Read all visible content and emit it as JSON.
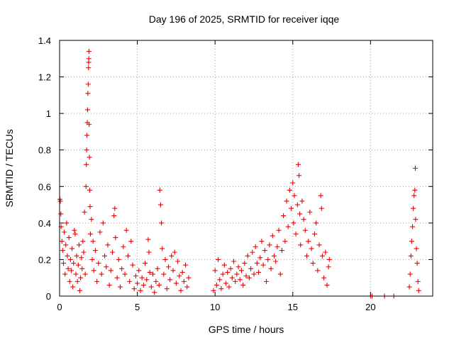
{
  "chart_data": {
    "type": "scatter",
    "title": "Day 196 of 2025, SRMTID for receiver iqqe",
    "xlabel": "GPS time / hours",
    "ylabel": "SRMTID / TECUs",
    "xlim": [
      0,
      24
    ],
    "ylim": [
      0,
      1.4
    ],
    "xticks": [
      0,
      5,
      10,
      15,
      20
    ],
    "yticks": [
      0,
      0.2,
      0.4,
      0.6,
      0.8,
      1,
      1.2,
      1.4
    ],
    "xtick_labels": [
      "0",
      "5",
      "10",
      "15",
      "20"
    ],
    "ytick_labels": [
      "0",
      "0.2",
      "0.4",
      "0.6",
      "0.8",
      "1",
      "1.2",
      "1.4"
    ],
    "grid": true,
    "marker": "+",
    "series": [
      {
        "name": "SRMTID",
        "color": "#ee0000",
        "points": [
          [
            0.02,
            0.53
          ],
          [
            0.05,
            0.52
          ],
          [
            0.08,
            0.45
          ],
          [
            0.1,
            0.38
          ],
          [
            0.15,
            0.3
          ],
          [
            0.2,
            0.25
          ],
          [
            0.25,
            0.18
          ],
          [
            0.3,
            0.35
          ],
          [
            0.35,
            0.12
          ],
          [
            0.4,
            0.28
          ],
          [
            0.45,
            0.4
          ],
          [
            0.5,
            0.22
          ],
          [
            0.55,
            0.15
          ],
          [
            0.6,
            0.32
          ],
          [
            0.65,
            0.08
          ],
          [
            0.7,
            0.2
          ],
          [
            0.75,
            0.14
          ],
          [
            0.8,
            0.26
          ],
          [
            0.85,
            0.05
          ],
          [
            0.9,
            0.18
          ],
          [
            0.95,
            0.36
          ],
          [
            1.0,
            0.34
          ],
          [
            1.05,
            0.12
          ],
          [
            1.1,
            0.22
          ],
          [
            1.15,
            0.08
          ],
          [
            1.2,
            0.17
          ],
          [
            1.25,
            0.28
          ],
          [
            1.3,
            0.03
          ],
          [
            1.35,
            0.1
          ],
          [
            1.4,
            0.21
          ],
          [
            1.45,
            0.15
          ],
          [
            1.5,
            0.3
          ],
          [
            1.55,
            0.24
          ],
          [
            1.6,
            0.46
          ],
          [
            1.65,
            0.12
          ],
          [
            1.7,
            0.6
          ],
          [
            1.72,
            0.72
          ],
          [
            1.74,
            0.8
          ],
          [
            1.76,
            0.88
          ],
          [
            1.78,
            0.95
          ],
          [
            1.8,
            1.02
          ],
          [
            1.82,
            1.11
          ],
          [
            1.84,
            1.16
          ],
          [
            1.86,
            1.25
          ],
          [
            1.87,
            1.28
          ],
          [
            1.88,
            1.3
          ],
          [
            1.89,
            1.34
          ],
          [
            1.9,
            0.94
          ],
          [
            1.92,
            0.76
          ],
          [
            1.94,
            0.58
          ],
          [
            1.96,
            0.49
          ],
          [
            1.98,
            0.34
          ],
          [
            2.05,
            0.42
          ],
          [
            2.1,
            0.2
          ],
          [
            2.15,
            0.3
          ],
          [
            2.2,
            0.14
          ],
          [
            2.3,
            0.25
          ],
          [
            2.4,
            0.08
          ],
          [
            2.5,
            0.18
          ],
          [
            2.6,
            0.35
          ],
          [
            2.7,
            0.12
          ],
          [
            2.8,
            0.4
          ],
          [
            2.9,
            0.22
          ],
          [
            3.0,
            0.16
          ],
          [
            3.1,
            0.28
          ],
          [
            3.2,
            0.06
          ],
          [
            3.3,
            0.14
          ],
          [
            3.4,
            0.24
          ],
          [
            3.5,
            0.44
          ],
          [
            3.55,
            0.48
          ],
          [
            3.6,
            0.32
          ],
          [
            3.7,
            0.1
          ],
          [
            3.8,
            0.2
          ],
          [
            3.9,
            0.05
          ],
          [
            4.0,
            0.15
          ],
          [
            4.1,
            0.27
          ],
          [
            4.2,
            0.12
          ],
          [
            4.3,
            0.36
          ],
          [
            4.4,
            0.22
          ],
          [
            4.5,
            0.08
          ],
          [
            4.6,
            0.3
          ],
          [
            4.7,
            0.17
          ],
          [
            4.8,
            0.04
          ],
          [
            4.9,
            0.11
          ],
          [
            5.0,
            0.07
          ],
          [
            5.1,
            0.14
          ],
          [
            5.2,
            0.03
          ],
          [
            5.3,
            0.1
          ],
          [
            5.4,
            0.06
          ],
          [
            5.5,
            0.18
          ],
          [
            5.6,
            0.09
          ],
          [
            5.7,
            0.31
          ],
          [
            5.75,
            0.24
          ],
          [
            5.8,
            0.13
          ],
          [
            5.9,
            0.05
          ],
          [
            6.0,
            0.12
          ],
          [
            6.1,
            0.02
          ],
          [
            6.2,
            0.08
          ],
          [
            6.3,
            0.15
          ],
          [
            6.4,
            0.06
          ],
          [
            6.45,
            0.58
          ],
          [
            6.5,
            0.5
          ],
          [
            6.55,
            0.4
          ],
          [
            6.6,
            0.26
          ],
          [
            6.7,
            0.12
          ],
          [
            6.8,
            0.2
          ],
          [
            6.9,
            0.04
          ],
          [
            7.0,
            0.16
          ],
          [
            7.1,
            0.09
          ],
          [
            7.2,
            0.22
          ],
          [
            7.3,
            0.14
          ],
          [
            7.4,
            0.24
          ],
          [
            7.5,
            0.07
          ],
          [
            7.6,
            0.19
          ],
          [
            7.7,
            0.11
          ],
          [
            7.8,
            0.03
          ],
          [
            7.9,
            0.13
          ],
          [
            8.0,
            0.08
          ],
          [
            8.1,
            0.17
          ],
          [
            8.2,
            0.05
          ],
          [
            8.3,
            0.1
          ],
          [
            9.9,
            0.03
          ],
          [
            10.0,
            0.14
          ],
          [
            10.1,
            0.06
          ],
          [
            10.2,
            0.2
          ],
          [
            10.3,
            0.09
          ],
          [
            10.4,
            0.04
          ],
          [
            10.5,
            0.12
          ],
          [
            10.6,
            0.17
          ],
          [
            10.7,
            0.07
          ],
          [
            10.8,
            0.13
          ],
          [
            10.9,
            0.05
          ],
          [
            11.0,
            0.15
          ],
          [
            11.1,
            0.1
          ],
          [
            11.2,
            0.19
          ],
          [
            11.3,
            0.08
          ],
          [
            11.4,
            0.12
          ],
          [
            11.5,
            0.16
          ],
          [
            11.6,
            0.09
          ],
          [
            11.7,
            0.14
          ],
          [
            11.8,
            0.06
          ],
          [
            11.9,
            0.18
          ],
          [
            12.0,
            0.11
          ],
          [
            12.1,
            0.22
          ],
          [
            12.2,
            0.1
          ],
          [
            12.3,
            0.15
          ],
          [
            12.4,
            0.24
          ],
          [
            12.5,
            0.12
          ],
          [
            12.6,
            0.27
          ],
          [
            12.7,
            0.18
          ],
          [
            12.8,
            0.13
          ],
          [
            12.9,
            0.21
          ],
          [
            13.0,
            0.3
          ],
          [
            13.1,
            0.17
          ],
          [
            13.2,
            0.25
          ],
          [
            13.3,
            0.08
          ],
          [
            13.4,
            0.2
          ],
          [
            13.5,
            0.28
          ],
          [
            13.6,
            0.15
          ],
          [
            13.7,
            0.33
          ],
          [
            13.8,
            0.22
          ],
          [
            13.9,
            0.19
          ],
          [
            14.0,
            0.27
          ],
          [
            14.1,
            0.36
          ],
          [
            14.2,
            0.12
          ],
          [
            14.3,
            0.25
          ],
          [
            14.4,
            0.44
          ],
          [
            14.5,
            0.3
          ],
          [
            14.6,
            0.52
          ],
          [
            14.7,
            0.38
          ],
          [
            14.8,
            0.58
          ],
          [
            14.9,
            0.48
          ],
          [
            15.0,
            0.62
          ],
          [
            15.05,
            0.4
          ],
          [
            15.1,
            0.55
          ],
          [
            15.2,
            0.34
          ],
          [
            15.3,
            0.5
          ],
          [
            15.35,
            0.72
          ],
          [
            15.4,
            0.66
          ],
          [
            15.45,
            0.45
          ],
          [
            15.5,
            0.28
          ],
          [
            15.6,
            0.52
          ],
          [
            15.7,
            0.42
          ],
          [
            15.8,
            0.36
          ],
          [
            15.9,
            0.22
          ],
          [
            16.0,
            0.3
          ],
          [
            16.1,
            0.46
          ],
          [
            16.2,
            0.26
          ],
          [
            16.3,
            0.18
          ],
          [
            16.4,
            0.34
          ],
          [
            16.5,
            0.4
          ],
          [
            16.6,
            0.14
          ],
          [
            16.7,
            0.28
          ],
          [
            16.8,
            0.55
          ],
          [
            16.85,
            0.48
          ],
          [
            16.9,
            0.22
          ],
          [
            17.0,
            0.1
          ],
          [
            17.1,
            0.24
          ],
          [
            17.2,
            0.06
          ],
          [
            17.3,
            0.16
          ],
          [
            17.35,
            0.2
          ],
          [
            20.0,
            0.0
          ],
          [
            20.1,
            0.0
          ],
          [
            20.9,
            0.0
          ],
          [
            21.5,
            0.0
          ],
          [
            22.5,
            0.05
          ],
          [
            22.55,
            0.12
          ],
          [
            22.6,
            0.22
          ],
          [
            22.65,
            0.3
          ],
          [
            22.7,
            0.38
          ],
          [
            22.75,
            0.48
          ],
          [
            22.8,
            0.55
          ],
          [
            22.85,
            0.58
          ],
          [
            22.88,
            0.7
          ],
          [
            22.9,
            0.42
          ],
          [
            22.95,
            0.26
          ],
          [
            23.0,
            0.18
          ],
          [
            23.05,
            0.08
          ],
          [
            23.1,
            0.03
          ]
        ]
      }
    ]
  }
}
